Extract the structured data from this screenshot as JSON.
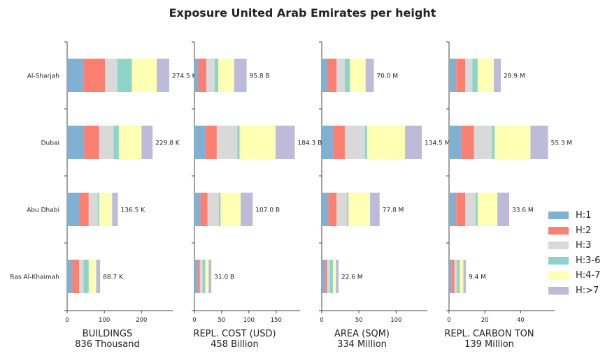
{
  "title": "Exposure United Arab Emirates per height",
  "colors": {
    "H:1": "#80b1d3",
    "H:2": "#fb8072",
    "H:3": "#d9d9d9",
    "H:3-6": "#8dd3c7",
    "H:4-7": "#ffffb3",
    "H:>7": "#bebada"
  },
  "chart_data": {
    "type": "bar",
    "orientation": "horizontal",
    "stacked": true,
    "categories": [
      "Ras Al-Khaimah",
      "Abu Dhabi",
      "Dubai",
      "Al-Sharjah"
    ],
    "series_names": [
      "H:1",
      "H:2",
      "H:3",
      "H:3-6",
      "H:4-7",
      "H:>7"
    ],
    "legend_position": "right",
    "grid": false,
    "panels": [
      {
        "xlabel": "BUILDINGS",
        "subtitle": "836 Thousand",
        "xlim": [
          0,
          284
        ],
        "xticks": [
          0,
          100,
          200
        ],
        "data": {
          "Al-Sharjah": [
            44,
            58,
            33,
            39,
            67,
            33.5
          ],
          "Dubai": [
            46,
            40,
            39,
            14,
            61,
            29.8
          ],
          "Abu Dhabi": [
            33,
            25,
            24,
            4,
            35,
            15.5
          ],
          "Ras Al-Khaimah": [
            14,
            18,
            12,
            14,
            20,
            10.7
          ]
        },
        "totals": {
          "Al-Sharjah": "274.5 K",
          "Dubai": "229.8 K",
          "Abu Dhabi": "136.5 K",
          "Ras Al-Khaimah": "88.7 K"
        }
      },
      {
        "xlabel": "REPL. COST (USD)",
        "subtitle": "458 Billion",
        "xlim": [
          0,
          194
        ],
        "xticks": [
          0,
          50,
          100,
          150
        ],
        "data": {
          "Al-Sharjah": [
            7,
            15,
            15,
            7,
            29,
            22.8
          ],
          "Dubai": [
            21,
            20,
            38,
            4,
            66,
            35.3
          ],
          "Abu Dhabi": [
            11,
            13,
            21,
            3,
            37,
            22
          ],
          "Ras Al-Khaimah": [
            6,
            4,
            5,
            5,
            6,
            5
          ]
        },
        "totals": {
          "Al-Sharjah": "95.8 B",
          "Dubai": "184.3 B",
          "Abu Dhabi": "107.0 B",
          "Ras Al-Khaimah": "31.0 B"
        }
      },
      {
        "xlabel": "AREA (SQM)",
        "subtitle": "334 Million",
        "xlim": [
          0,
          142
        ],
        "xticks": [
          0,
          50,
          100
        ],
        "data": {
          "Al-Sharjah": [
            8,
            12,
            11,
            7,
            21,
            11
          ],
          "Dubai": [
            15,
            16,
            27,
            3,
            51,
            22.5
          ],
          "Abu Dhabi": [
            9,
            11,
            14,
            2,
            29,
            12.8
          ],
          "Ras Al-Khaimah": [
            4,
            3,
            4,
            4,
            4,
            3.6
          ]
        },
        "totals": {
          "Al-Sharjah": "70.0 M",
          "Dubai": "134.5 M",
          "Abu Dhabi": "77.8 M",
          "Ras Al-Khaimah": "22.6 M"
        }
      },
      {
        "xlabel": "REPL. CARBON TON",
        "subtitle": "139 Million",
        "xlim": [
          0,
          59
        ],
        "xticks": [
          0,
          20,
          40
        ],
        "data": {
          "Al-Sharjah": [
            4,
            5,
            4,
            3,
            9,
            3.9
          ],
          "Dubai": [
            7,
            7,
            10,
            1.5,
            20,
            9.8
          ],
          "Abu Dhabi": [
            4,
            5,
            6,
            1,
            11,
            6.6
          ],
          "Ras Al-Khaimah": [
            1.5,
            1.5,
            1.5,
            1.5,
            2,
            1.4
          ]
        },
        "totals": {
          "Al-Sharjah": "28.9 M",
          "Dubai": "55.3 M",
          "Abu Dhabi": "33.6 M",
          "Ras Al-Khaimah": "9.4 M"
        }
      }
    ]
  }
}
